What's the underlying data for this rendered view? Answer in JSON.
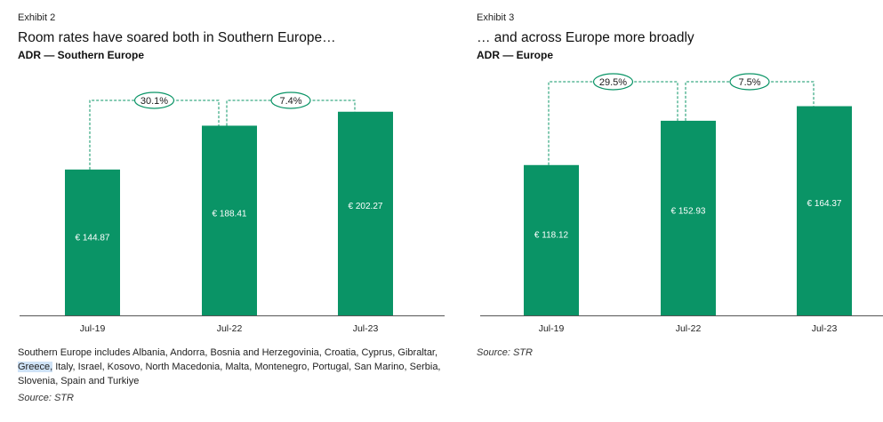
{
  "colors": {
    "bar": "#0a9466",
    "connector": "#0a9466",
    "axis": "#555555"
  },
  "exhibits": [
    {
      "exhibit_label": "Exhibit 2",
      "title": "Room rates have soared both in Southern Europe…",
      "subtitle": "ADR — Southern Europe",
      "note_before": "Southern Europe includes Albania, Andorra, Bosnia and Herzegovinia, Croatia, Cyprus, Gibraltar, ",
      "note_highlight": "Greece,",
      "note_after": " Italy, Israel, Kosovo, North Macedonia, Malta, Montenegro, Portugal, San Marino, Serbia, Slovenia, Spain and Turkiye",
      "source": "Source: STR"
    },
    {
      "exhibit_label": "Exhibit 3",
      "title": "… and across Europe more broadly",
      "subtitle": "ADR — Europe",
      "source": "Source: STR"
    }
  ],
  "chart_data": [
    {
      "type": "bar",
      "categories": [
        "Jul-19",
        "Jul-22",
        "Jul-23"
      ],
      "values": [
        144.87,
        188.41,
        202.27
      ],
      "value_labels": [
        "€ 144.87",
        "€ 188.41",
        "€ 202.27"
      ],
      "changes": [
        "30.1%",
        "7.4%"
      ],
      "ylim": [
        0,
        225
      ]
    },
    {
      "type": "bar",
      "categories": [
        "Jul-19",
        "Jul-22",
        "Jul-23"
      ],
      "values": [
        118.12,
        152.93,
        164.37
      ],
      "value_labels": [
        "€ 118.12",
        "€ 152.93",
        "€ 164.37"
      ],
      "changes": [
        "29.5%",
        "7.5%"
      ],
      "ylim": [
        0,
        178
      ]
    }
  ]
}
